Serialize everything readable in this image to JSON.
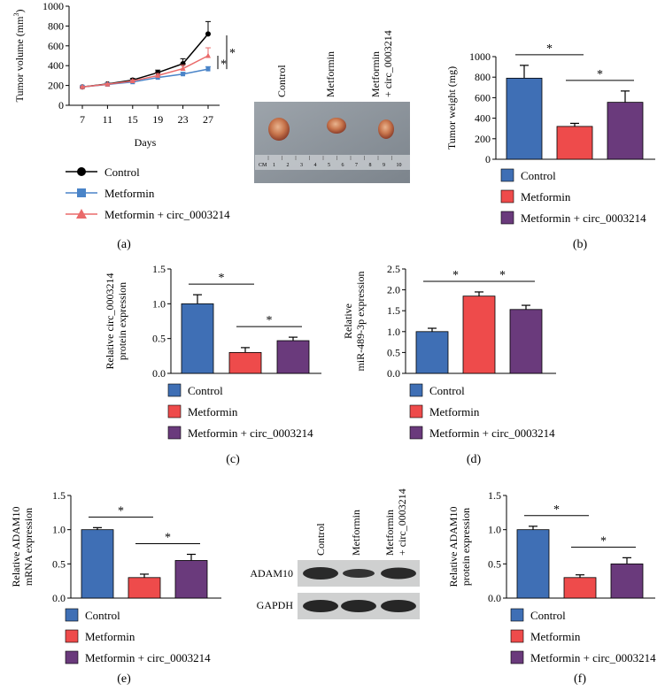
{
  "colors": {
    "control": "#3f6fb5",
    "metformin": "#ee4b4b",
    "combo": "#6a3a7c",
    "line_control": "#000000",
    "line_metformin": "#4a84c8",
    "line_combo": "#ea6a6a"
  },
  "legend_labels": [
    "Control",
    "Metformin",
    "Metformin + circ_0003214"
  ],
  "panel_labels": {
    "a": "(a)",
    "b": "(b)",
    "c": "(c)",
    "d": "(d)",
    "e": "(e)",
    "f": "(f)"
  },
  "significance_mark": "*",
  "photo": {
    "column_labels": [
      "Control",
      "Metformin",
      "Metformin",
      "+ circ_0003214"
    ],
    "ruler_label": "CM",
    "ruler_numbers": [
      "1",
      "2",
      "3",
      "4",
      "5",
      "6",
      "7",
      "8",
      "9",
      "10"
    ]
  },
  "blot": {
    "column_labels": [
      "Control",
      "Metformin",
      "Metformin",
      "+ circ_0003214"
    ],
    "row_labels": [
      "ADAM10",
      "GAPDH"
    ]
  },
  "chart_data": [
    {
      "panel": "a",
      "type": "line",
      "xlabel": "Days",
      "ylabel": "Tumor volume (mm",
      "ylabel_sup": "3",
      "ylabel_close": ")",
      "x": [
        7,
        11,
        15,
        19,
        23,
        27
      ],
      "x_ticks": [
        "7",
        "11",
        "15",
        "19",
        "23",
        "27"
      ],
      "y_ticks": [
        "0",
        "200",
        "400",
        "600",
        "800",
        "1000"
      ],
      "ylim": [
        0,
        1000
      ],
      "series": [
        {
          "name": "Control",
          "values": [
            185,
            215,
            255,
            330,
            420,
            720
          ],
          "errors": [
            8,
            10,
            15,
            25,
            50,
            125
          ]
        },
        {
          "name": "Metformin",
          "values": [
            185,
            210,
            235,
            280,
            315,
            365
          ],
          "errors": [
            5,
            8,
            10,
            15,
            18,
            25
          ]
        },
        {
          "name": "Metformin + circ_0003214",
          "values": [
            185,
            212,
            245,
            300,
            370,
            500
          ],
          "errors": [
            6,
            9,
            12,
            20,
            35,
            80
          ]
        }
      ]
    },
    {
      "panel": "b",
      "type": "bar",
      "ylabel": "Tumor weight (mg)",
      "y_ticks": [
        "0",
        "200",
        "400",
        "600",
        "800",
        "1000"
      ],
      "ylim": [
        0,
        1000
      ],
      "categories": [
        "Control",
        "Metformin",
        "Metformin + circ_0003214"
      ],
      "values": [
        790,
        320,
        555
      ],
      "errors": [
        125,
        30,
        110
      ]
    },
    {
      "panel": "c",
      "type": "bar",
      "ylabel": [
        "Relative circ_0003214",
        "protein expression"
      ],
      "y_ticks": [
        "0.0",
        "0.5",
        "1.0",
        "1.5"
      ],
      "ylim": [
        0,
        1.5
      ],
      "categories": [
        "Control",
        "Metformin",
        "Metformin + circ_0003214"
      ],
      "values": [
        1.0,
        0.3,
        0.47
      ],
      "errors": [
        0.13,
        0.07,
        0.05
      ]
    },
    {
      "panel": "d",
      "type": "bar",
      "ylabel": [
        "Relative",
        "miR-489-3p expression"
      ],
      "y_ticks": [
        "0.0",
        "0.5",
        "1.0",
        "1.5",
        "2.0",
        "2.5"
      ],
      "ylim": [
        0,
        2.5
      ],
      "categories": [
        "Control",
        "Metformin",
        "Metformin + circ_0003214"
      ],
      "values": [
        1.0,
        1.85,
        1.53
      ],
      "errors": [
        0.08,
        0.1,
        0.1
      ]
    },
    {
      "panel": "e",
      "type": "bar",
      "ylabel": [
        "Relative ADAM10",
        "mRNA expression"
      ],
      "y_ticks": [
        "0.0",
        "0.5",
        "1.0",
        "1.5"
      ],
      "ylim": [
        0,
        1.5
      ],
      "categories": [
        "Control",
        "Metformin",
        "Metformin + circ_0003214"
      ],
      "values": [
        1.0,
        0.3,
        0.55
      ],
      "errors": [
        0.03,
        0.05,
        0.09
      ]
    },
    {
      "panel": "f",
      "type": "bar",
      "ylabel": [
        "Relative ADAM10",
        "protein expression"
      ],
      "y_ticks": [
        "0.0",
        "0.5",
        "1.0",
        "1.5"
      ],
      "ylim": [
        0,
        1.5
      ],
      "categories": [
        "Control",
        "Metformin",
        "Metformin + circ_0003214"
      ],
      "values": [
        1.0,
        0.3,
        0.5
      ],
      "errors": [
        0.05,
        0.04,
        0.09
      ]
    }
  ]
}
